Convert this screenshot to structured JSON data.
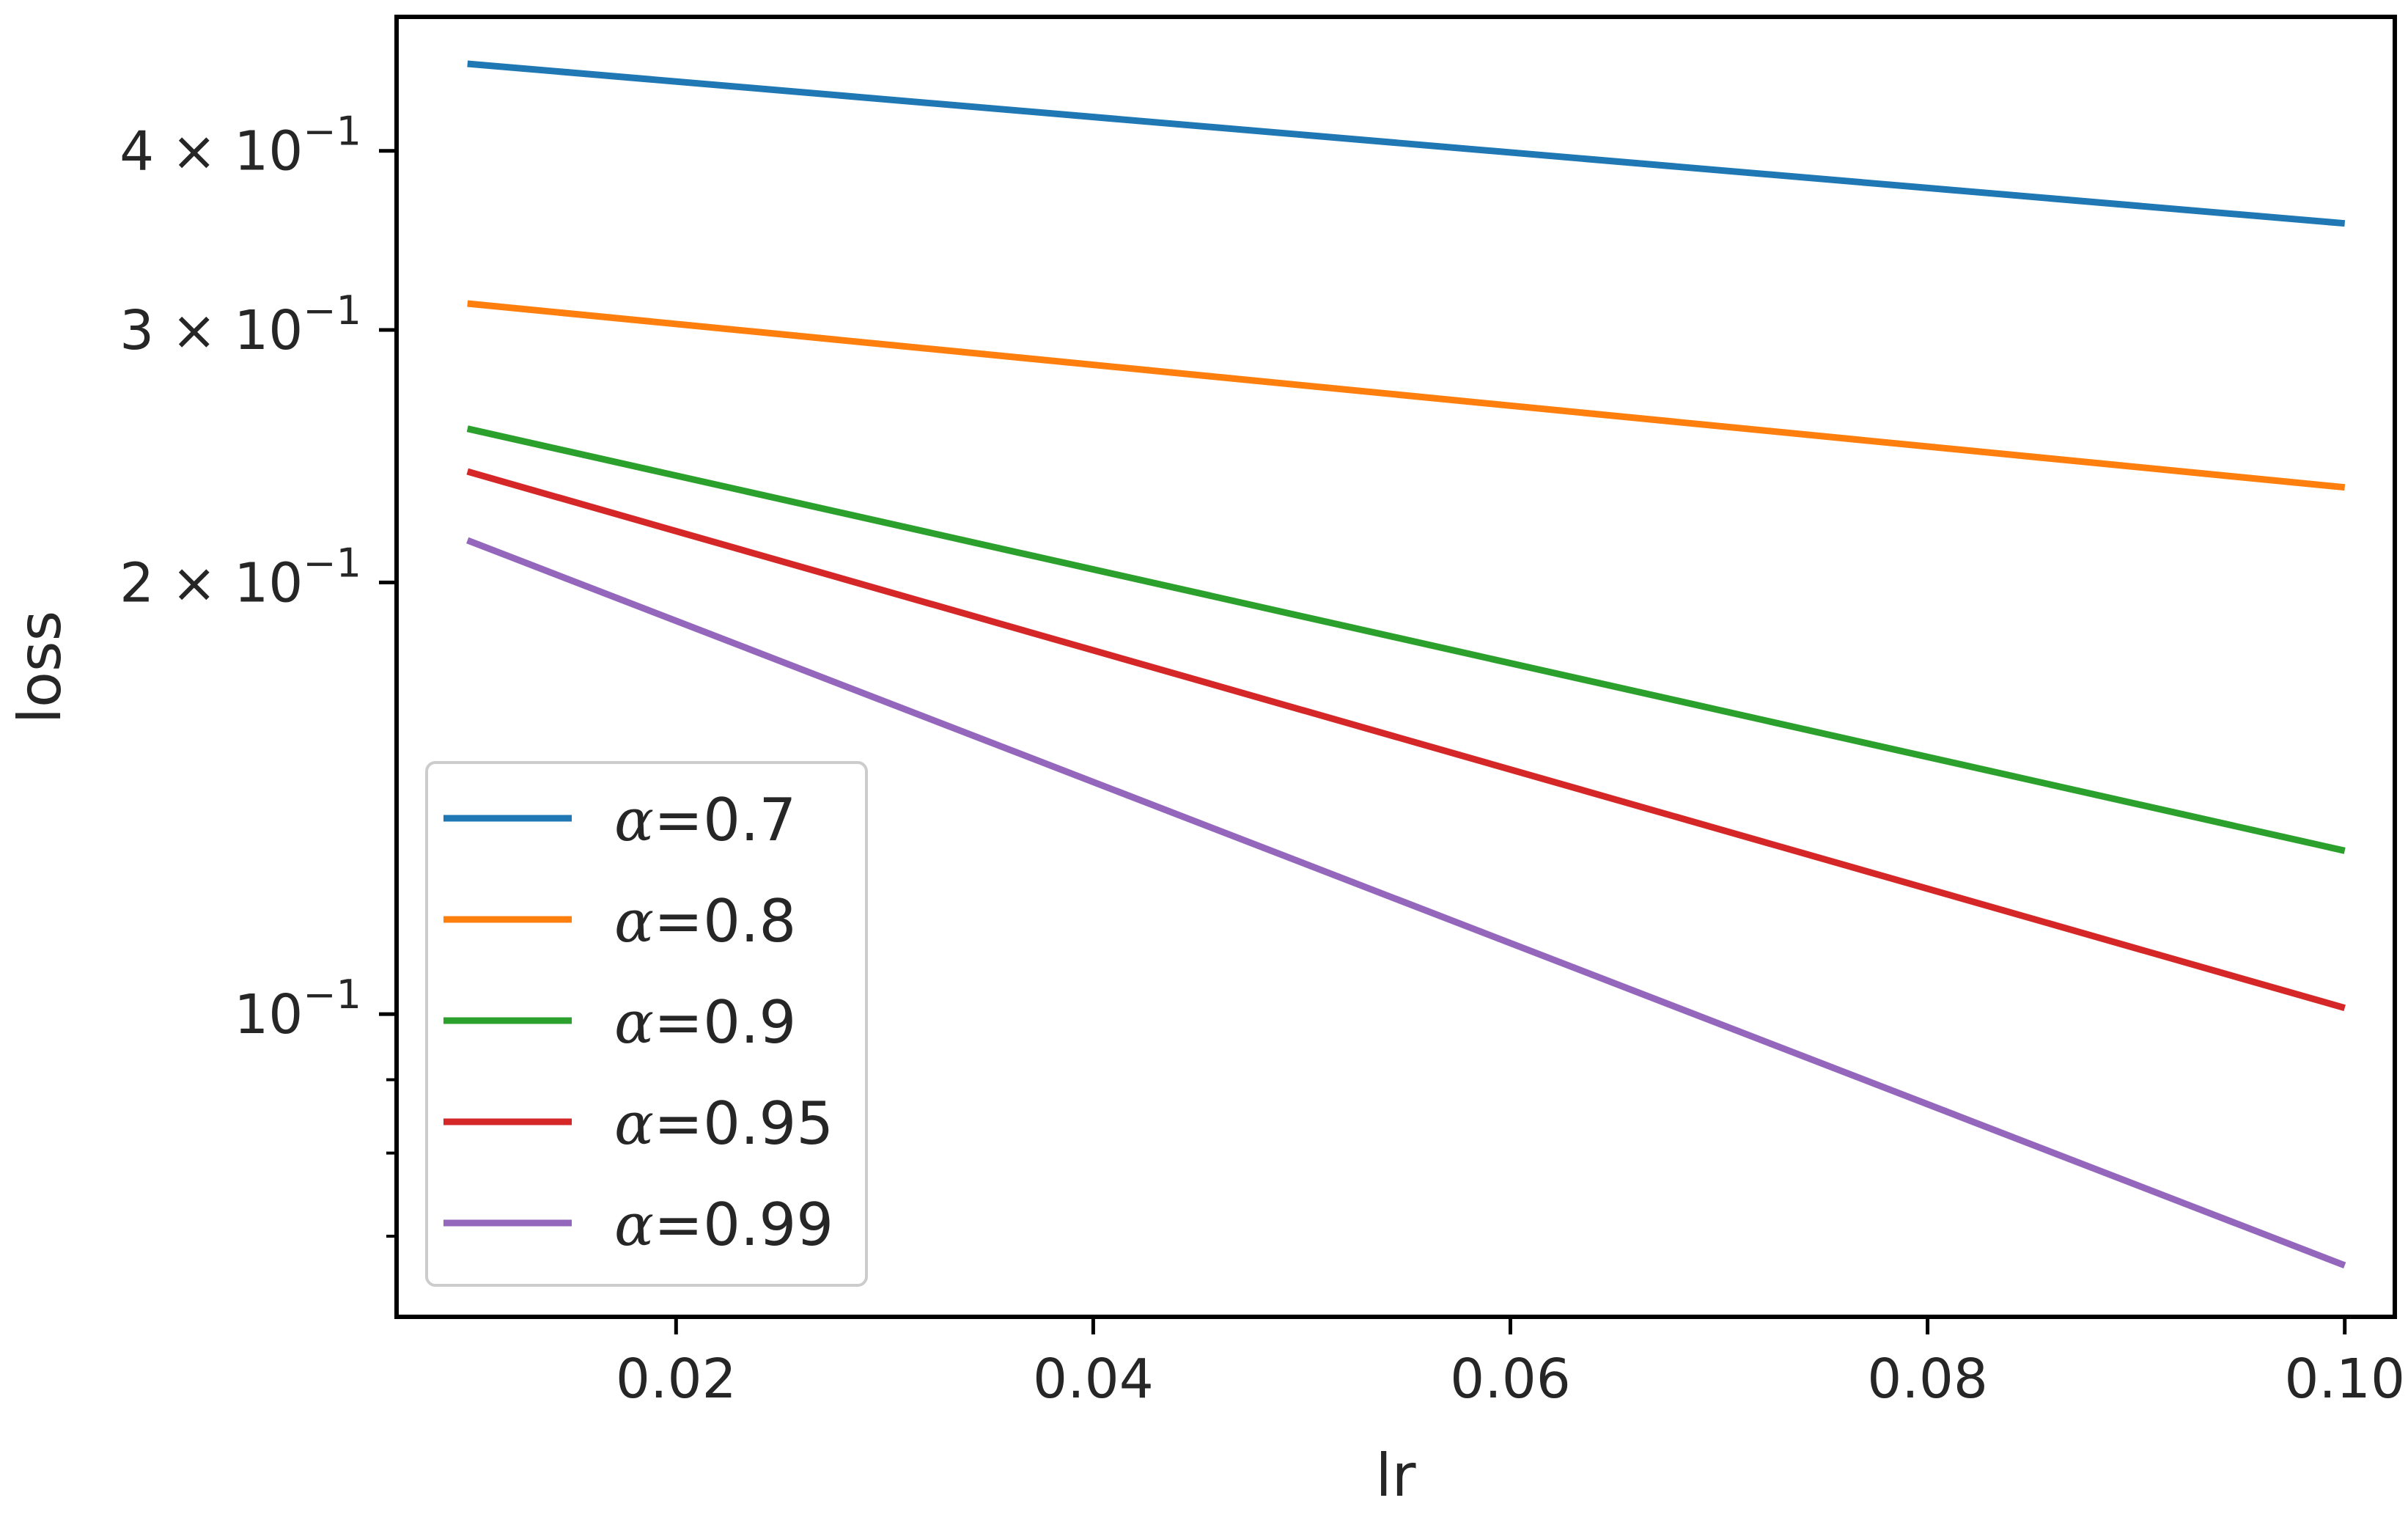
{
  "chart_data": {
    "type": "line",
    "title": "",
    "xlabel": "lr",
    "ylabel": "loss",
    "xlim": [
      0.0066,
      0.1024
    ],
    "ylim": [
      0.0615,
      0.496
    ],
    "yscale": "log",
    "grid": false,
    "legend_position": "lower-left",
    "x_ticks": [
      {
        "value": 0.02,
        "label": "0.02"
      },
      {
        "value": 0.04,
        "label": "0.04"
      },
      {
        "value": 0.06,
        "label": "0.06"
      },
      {
        "value": 0.08,
        "label": "0.08"
      },
      {
        "value": 0.1,
        "label": "0.10"
      }
    ],
    "y_major_ticks": [
      {
        "value": 0.1,
        "mantissa": "",
        "exponent": "−1"
      },
      {
        "value": 0.2,
        "mantissa": "2",
        "exponent": "−1"
      },
      {
        "value": 0.3,
        "mantissa": "3",
        "exponent": "−1"
      },
      {
        "value": 0.4,
        "mantissa": "4",
        "exponent": "−1"
      }
    ],
    "y_minor_ticks": [
      0.07,
      0.08,
      0.09,
      0.5
    ],
    "series": [
      {
        "name": "α=0.7",
        "alpha": "0.7",
        "color": "#1f77b4",
        "x": [
          0.01,
          0.1
        ],
        "y": [
          0.46,
          0.356
        ]
      },
      {
        "name": "α=0.8",
        "alpha": "0.8",
        "color": "#ff7f0e",
        "x": [
          0.01,
          0.1
        ],
        "y": [
          0.313,
          0.233
        ]
      },
      {
        "name": "α=0.9",
        "alpha": "0.9",
        "color": "#2ca02c",
        "x": [
          0.01,
          0.1
        ],
        "y": [
          0.256,
          0.13
        ]
      },
      {
        "name": "α=0.95",
        "alpha": "0.95",
        "color": "#d62728",
        "x": [
          0.01,
          0.1
        ],
        "y": [
          0.239,
          0.101
        ]
      },
      {
        "name": "α=0.99",
        "alpha": "0.99",
        "color": "#9467bd",
        "x": [
          0.01,
          0.1
        ],
        "y": [
          0.214,
          0.0668
        ]
      }
    ]
  }
}
